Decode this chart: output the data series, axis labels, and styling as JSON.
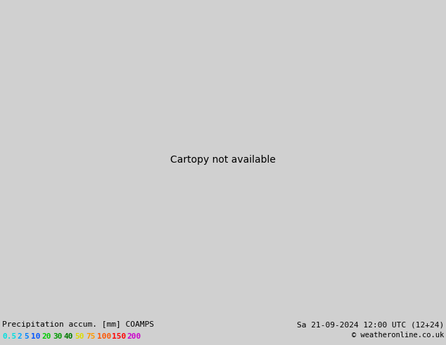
{
  "title_left": "Precipitation accum. [mm] COAMPS",
  "title_right": "Sa 21-09-2024 12:00 UTC (12+24)",
  "copyright": "© weatheronline.co.uk",
  "legend_values": [
    "0.5",
    "2",
    "5",
    "10",
    "20",
    "30",
    "40",
    "50",
    "75",
    "100",
    "150",
    "200"
  ],
  "legend_colors": [
    "#00e0e0",
    "#00aaff",
    "#007fff",
    "#0055ff",
    "#00cc00",
    "#009900",
    "#007700",
    "#dddd00",
    "#ff9900",
    "#ff5500",
    "#ff0000",
    "#cc00cc"
  ],
  "outer_bg": "#d0d0d0",
  "land_color": "#c8e8c0",
  "sea_color": "#e8e8e8",
  "ocean_color": "#d8d8d8",
  "precip_cyan": "#7eddee",
  "precip_light_blue": "#55ccee",
  "precip_medium_blue": "#33aade",
  "precip_strong_blue": "#2299dd",
  "coast_color": "#aaaaaa",
  "coast_lw": 0.5,
  "font_family": "monospace",
  "bottom_text_color": "#000000",
  "number_color": "#000000",
  "number_fontsize": 5.5
}
